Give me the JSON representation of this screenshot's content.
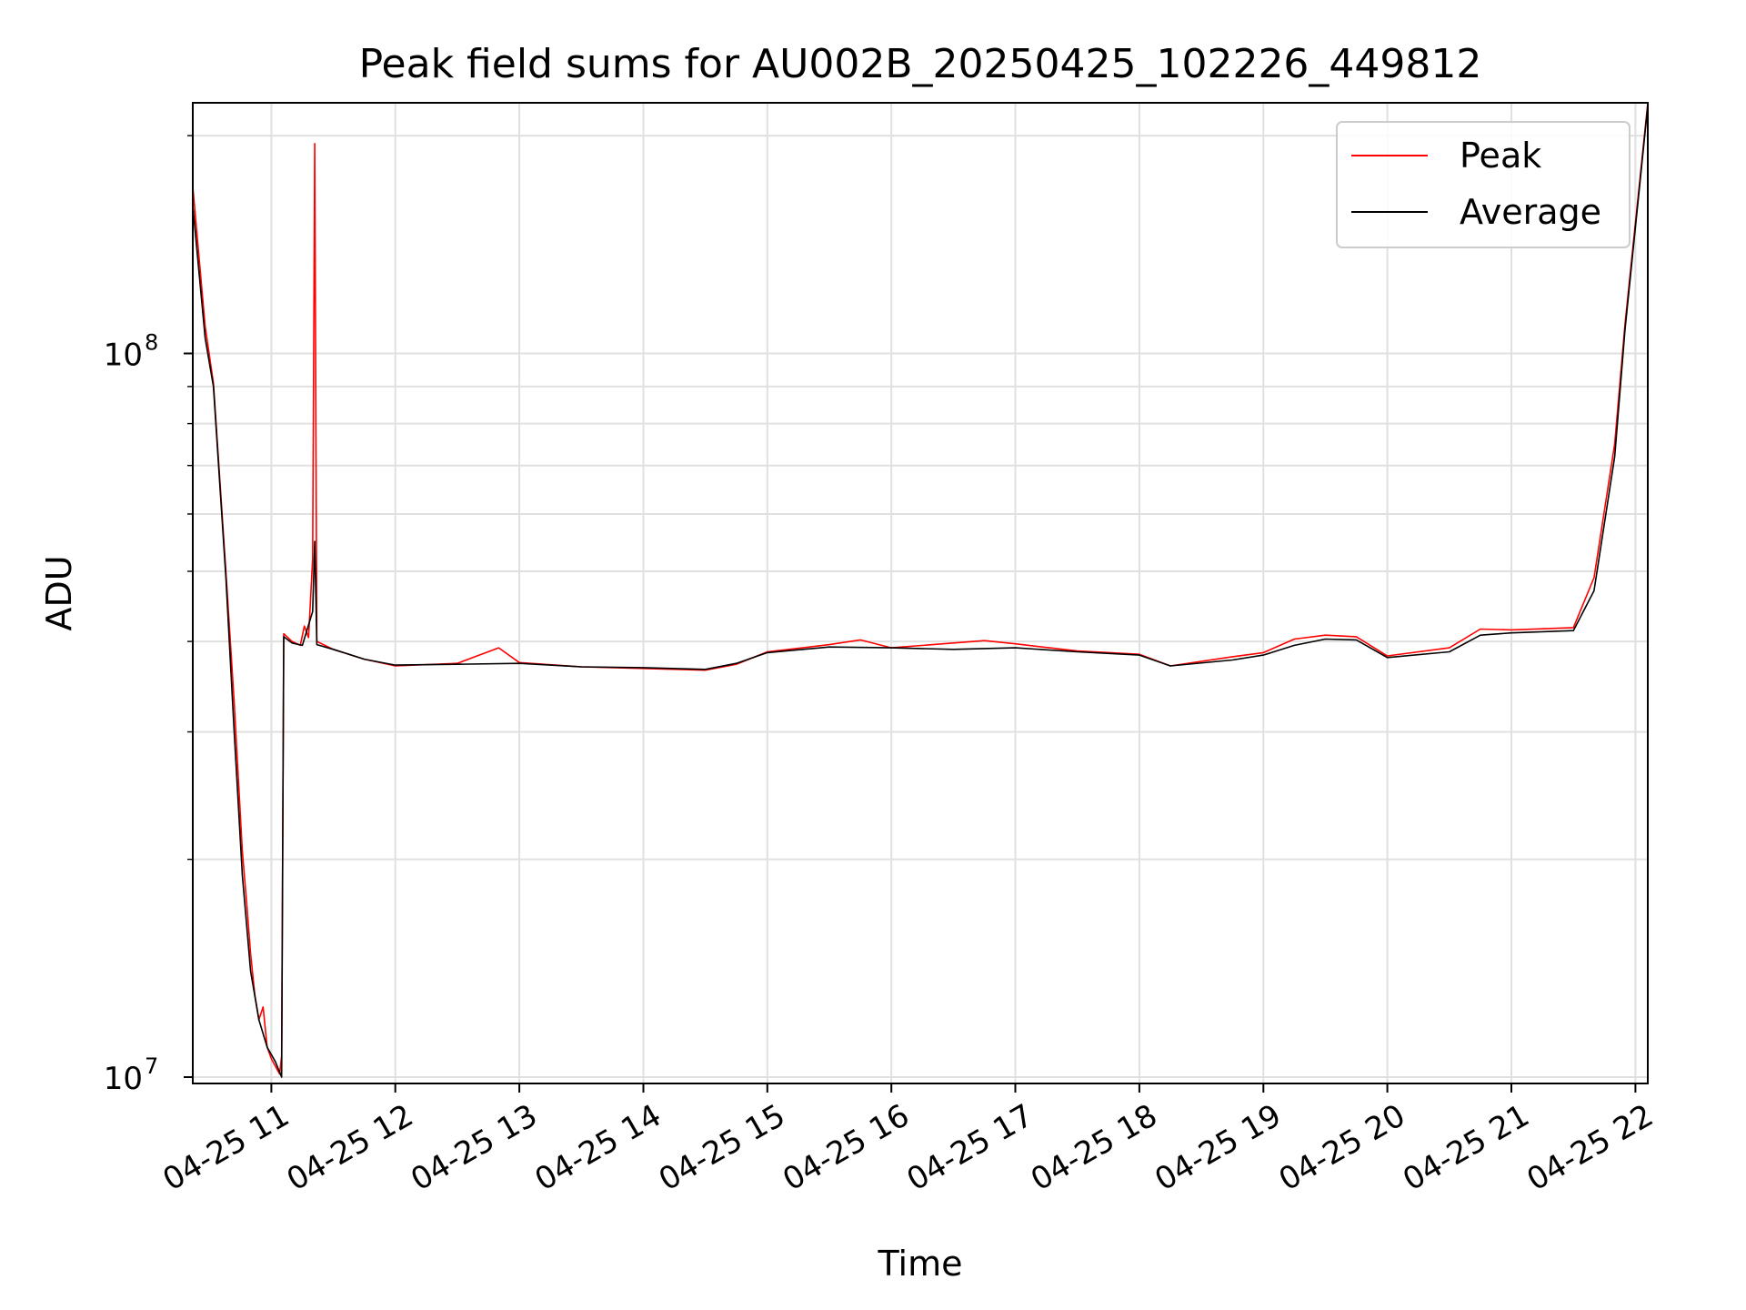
{
  "chart_data": {
    "type": "line",
    "title": "Peak field sums for AU002B_20250425_102226_449812",
    "xlabel": "Time",
    "ylabel": "ADU",
    "yscale": "log",
    "ylim": [
      9800000,
      222000000
    ],
    "xlim": [
      "2025-04-25 10:22",
      "2025-04-25 22:06"
    ],
    "grid": true,
    "legend_position": "upper right",
    "x_ticks": [
      "2025-04-25 11:00",
      "2025-04-25 12:00",
      "2025-04-25 13:00",
      "2025-04-25 14:00",
      "2025-04-25 15:00",
      "2025-04-25 16:00",
      "2025-04-25 17:00",
      "2025-04-25 18:00",
      "2025-04-25 19:00",
      "2025-04-25 20:00",
      "2025-04-25 21:00",
      "2025-04-25 22:00"
    ],
    "x_tick_labels": [
      "04-25 11",
      "04-25 12",
      "04-25 13",
      "04-25 14",
      "04-25 15",
      "04-25 16",
      "04-25 17",
      "04-25 18",
      "04-25 19",
      "04-25 20",
      "04-25 21",
      "04-25 22"
    ],
    "y_tick_labels": [
      {
        "base": "10",
        "exp": "7"
      },
      {
        "base": "10",
        "exp": "8"
      }
    ],
    "series": [
      {
        "name": "Peak",
        "color": "#ff0000",
        "points": [
          [
            "2025-04-25 10:22",
            170000000
          ],
          [
            "2025-04-25 10:28",
            109000000
          ],
          [
            "2025-04-25 10:32",
            91000000
          ],
          [
            "2025-04-25 10:38",
            50000000
          ],
          [
            "2025-04-25 10:42",
            33000000
          ],
          [
            "2025-04-25 10:46",
            20500000
          ],
          [
            "2025-04-25 10:48",
            17500000
          ],
          [
            "2025-04-25 10:50",
            14800000
          ],
          [
            "2025-04-25 10:52",
            13000000
          ],
          [
            "2025-04-25 10:54",
            12000000
          ],
          [
            "2025-04-25 10:56",
            12500000
          ],
          [
            "2025-04-25 10:58",
            11000000
          ],
          [
            "2025-04-25 11:00",
            10600000
          ],
          [
            "2025-04-25 11:04",
            10100000
          ],
          [
            "2025-04-25 11:05",
            10700000
          ],
          [
            "2025-04-25 11:06",
            41000000
          ],
          [
            "2025-04-25 11:10",
            40000000
          ],
          [
            "2025-04-25 11:14",
            39500000
          ],
          [
            "2025-04-25 11:16",
            42000000
          ],
          [
            "2025-04-25 11:18",
            40500000
          ],
          [
            "2025-04-25 11:20",
            52000000
          ],
          [
            "2025-04-25 11:21",
            195000000
          ],
          [
            "2025-04-25 11:22",
            40000000
          ],
          [
            "2025-04-25 11:30",
            39000000
          ],
          [
            "2025-04-25 11:45",
            37800000
          ],
          [
            "2025-04-25 12:00",
            37000000
          ],
          [
            "2025-04-25 12:30",
            37300000
          ],
          [
            "2025-04-25 12:50",
            39200000
          ],
          [
            "2025-04-25 13:00",
            37400000
          ],
          [
            "2025-04-25 13:30",
            36900000
          ],
          [
            "2025-04-25 14:00",
            36700000
          ],
          [
            "2025-04-25 14:30",
            36500000
          ],
          [
            "2025-04-25 14:45",
            37200000
          ],
          [
            "2025-04-25 15:00",
            38700000
          ],
          [
            "2025-04-25 15:30",
            39600000
          ],
          [
            "2025-04-25 15:45",
            40200000
          ],
          [
            "2025-04-25 16:00",
            39200000
          ],
          [
            "2025-04-25 16:30",
            39800000
          ],
          [
            "2025-04-25 16:45",
            40100000
          ],
          [
            "2025-04-25 17:00",
            39700000
          ],
          [
            "2025-04-25 17:30",
            38800000
          ],
          [
            "2025-04-25 18:00",
            38400000
          ],
          [
            "2025-04-25 18:15",
            37000000
          ],
          [
            "2025-04-25 18:45",
            38100000
          ],
          [
            "2025-04-25 19:00",
            38600000
          ],
          [
            "2025-04-25 19:15",
            40300000
          ],
          [
            "2025-04-25 19:30",
            40800000
          ],
          [
            "2025-04-25 19:45",
            40600000
          ],
          [
            "2025-04-25 20:00",
            38200000
          ],
          [
            "2025-04-25 20:30",
            39200000
          ],
          [
            "2025-04-25 20:45",
            41600000
          ],
          [
            "2025-04-25 21:00",
            41500000
          ],
          [
            "2025-04-25 21:30",
            41800000
          ],
          [
            "2025-04-25 21:40",
            49000000
          ],
          [
            "2025-04-25 21:50",
            75000000
          ],
          [
            "2025-04-25 21:55",
            110000000
          ],
          [
            "2025-04-25 22:06",
            222000000
          ]
        ]
      },
      {
        "name": "Average",
        "color": "#000000",
        "points": [
          [
            "2025-04-25 10:22",
            160000000
          ],
          [
            "2025-04-25 10:28",
            105000000
          ],
          [
            "2025-04-25 10:32",
            90000000
          ],
          [
            "2025-04-25 10:38",
            49000000
          ],
          [
            "2025-04-25 10:42",
            30000000
          ],
          [
            "2025-04-25 10:46",
            19000000
          ],
          [
            "2025-04-25 10:50",
            14000000
          ],
          [
            "2025-04-25 10:54",
            12000000
          ],
          [
            "2025-04-25 10:58",
            11000000
          ],
          [
            "2025-04-25 11:02",
            10500000
          ],
          [
            "2025-04-25 11:05",
            10000000
          ],
          [
            "2025-04-25 11:06",
            40600000
          ],
          [
            "2025-04-25 11:10",
            39800000
          ],
          [
            "2025-04-25 11:15",
            39500000
          ],
          [
            "2025-04-25 11:20",
            44000000
          ],
          [
            "2025-04-25 11:21",
            55000000
          ],
          [
            "2025-04-25 11:22",
            39600000
          ],
          [
            "2025-04-25 11:30",
            39000000
          ],
          [
            "2025-04-25 11:45",
            37800000
          ],
          [
            "2025-04-25 12:00",
            37100000
          ],
          [
            "2025-04-25 12:30",
            37200000
          ],
          [
            "2025-04-25 13:00",
            37300000
          ],
          [
            "2025-04-25 13:30",
            36900000
          ],
          [
            "2025-04-25 14:00",
            36800000
          ],
          [
            "2025-04-25 14:30",
            36600000
          ],
          [
            "2025-04-25 14:45",
            37300000
          ],
          [
            "2025-04-25 15:00",
            38600000
          ],
          [
            "2025-04-25 15:30",
            39300000
          ],
          [
            "2025-04-25 16:00",
            39200000
          ],
          [
            "2025-04-25 16:30",
            39000000
          ],
          [
            "2025-04-25 17:00",
            39200000
          ],
          [
            "2025-04-25 17:30",
            38700000
          ],
          [
            "2025-04-25 18:00",
            38300000
          ],
          [
            "2025-04-25 18:15",
            37000000
          ],
          [
            "2025-04-25 18:45",
            37700000
          ],
          [
            "2025-04-25 19:00",
            38300000
          ],
          [
            "2025-04-25 19:15",
            39500000
          ],
          [
            "2025-04-25 19:30",
            40300000
          ],
          [
            "2025-04-25 19:45",
            40200000
          ],
          [
            "2025-04-25 20:00",
            38000000
          ],
          [
            "2025-04-25 20:30",
            38700000
          ],
          [
            "2025-04-25 20:45",
            40800000
          ],
          [
            "2025-04-25 21:00",
            41100000
          ],
          [
            "2025-04-25 21:30",
            41400000
          ],
          [
            "2025-04-25 21:40",
            47000000
          ],
          [
            "2025-04-25 21:50",
            72000000
          ],
          [
            "2025-04-25 21:55",
            108000000
          ],
          [
            "2025-04-25 22:06",
            220000000
          ]
        ]
      }
    ]
  }
}
